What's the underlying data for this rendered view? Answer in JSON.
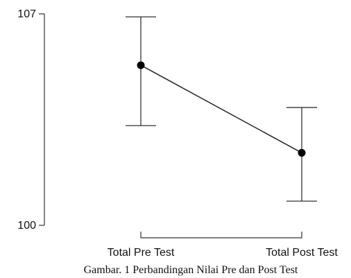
{
  "caption": "Gambar. 1 Perbandingan Nilai Pre dan Post Test",
  "chart_data": {
    "type": "line",
    "categories": [
      "Total Pre Test",
      "Total Post Test"
    ],
    "series": [
      {
        "values": [
          105.3,
          102.4
        ],
        "error_low": [
          103.3,
          100.8
        ],
        "error_high": [
          106.9,
          103.9
        ]
      }
    ],
    "yticks": [
      "100",
      "107"
    ],
    "ylim": [
      100,
      107
    ],
    "grid": false,
    "legend": "none"
  }
}
